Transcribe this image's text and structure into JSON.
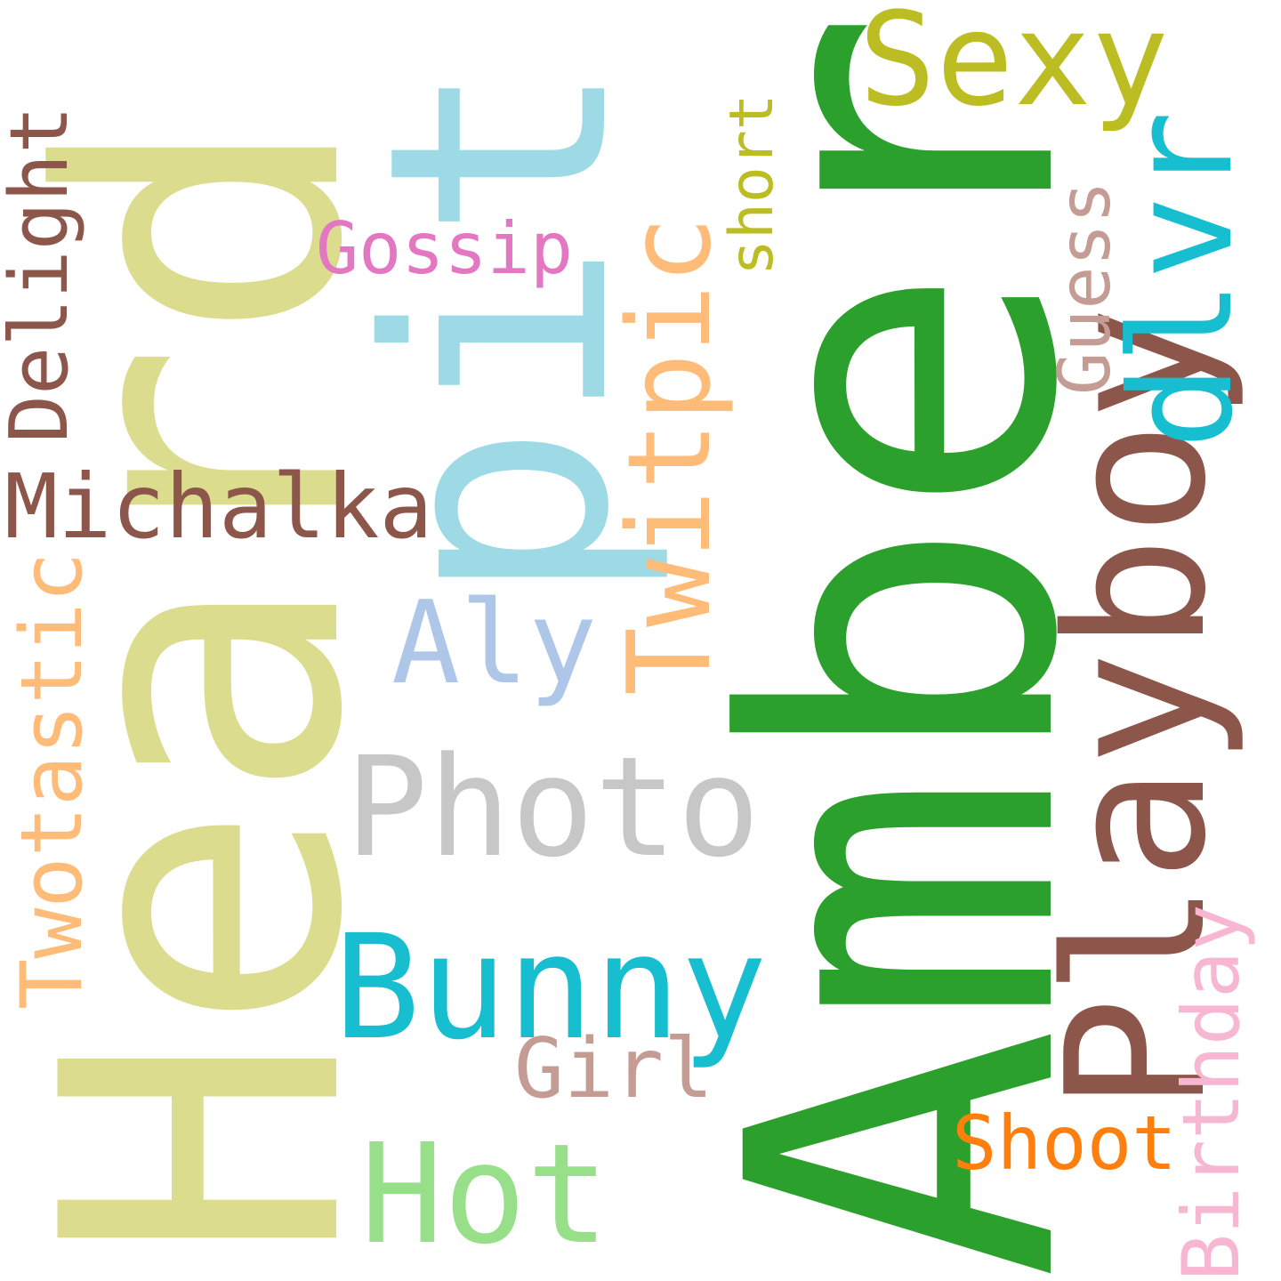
{
  "words": {
    "heard": {
      "text": "Heard",
      "color": "#dbdc8d"
    },
    "amber": {
      "text": "Amber",
      "color": "#2ca02c"
    },
    "pit": {
      "text": "pit",
      "color": "#9edae5"
    },
    "bunny": {
      "text": "Bunny",
      "color": "#17becf"
    },
    "photo": {
      "text": "Photo",
      "color": "#c7c7c7"
    },
    "playboy": {
      "text": "Playboy",
      "color": "#8c564b"
    },
    "sexy": {
      "text": "Sexy",
      "color": "#bcbd22"
    },
    "dlvr": {
      "text": "dlvr",
      "color": "#17becf"
    },
    "hot": {
      "text": "Hot",
      "color": "#98df8a"
    },
    "twitpic": {
      "text": "Twitpic",
      "color": "#ffbb78"
    },
    "michalka": {
      "text": "Michalka",
      "color": "#8c564b"
    },
    "twotastic": {
      "text": "Twotastic",
      "color": "#ffbb78"
    },
    "delight": {
      "text": "Delight",
      "color": "#8c564b"
    },
    "aly": {
      "text": "Aly",
      "color": "#aec7e8"
    },
    "gossip": {
      "text": "Gossip",
      "color": "#e377c2"
    },
    "girl": {
      "text": "Girl",
      "color": "#c49c94"
    },
    "shoot": {
      "text": "Shoot",
      "color": "#ff7f0e"
    },
    "birthday": {
      "text": "Birthday",
      "color": "#f7b6d2"
    },
    "guess": {
      "text": "Guess",
      "color": "#c49c94"
    },
    "short": {
      "text": "short",
      "color": "#bcbd22"
    }
  }
}
